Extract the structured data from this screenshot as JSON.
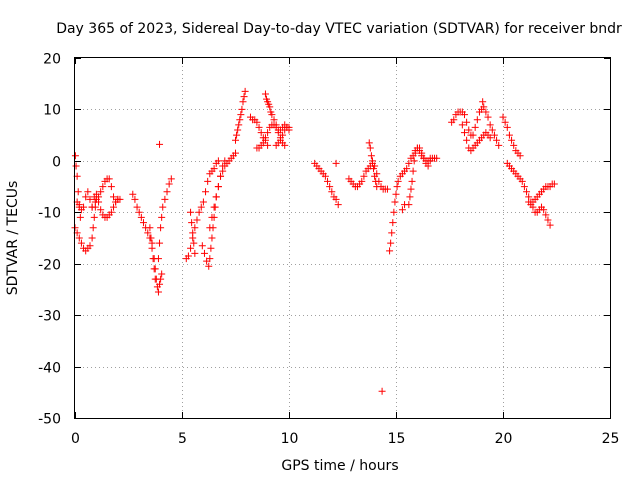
{
  "chart_data": {
    "type": "scatter",
    "title": "Day 365 of 2023, Sidereal Day-to-day VTEC variation (SDTVAR) for receiver bndr",
    "xlabel": "GPS time / hours",
    "ylabel": "SDTVAR / TECUs",
    "xlim": [
      0,
      25
    ],
    "ylim": [
      -50,
      20
    ],
    "xticks": [
      "0",
      "5",
      "10",
      "15",
      "20",
      "25"
    ],
    "yticks": [
      "20",
      "10",
      "0",
      "-10",
      "-20",
      "-30",
      "-40",
      "-50"
    ],
    "grid": true,
    "marker": "plus",
    "color": "#ff0000",
    "segments": [
      [
        [
          0.0,
          -13
        ],
        [
          0.1,
          -14
        ],
        [
          0.2,
          -15
        ],
        [
          0.3,
          -16
        ],
        [
          0.4,
          -17
        ],
        [
          0.5,
          -17.5
        ],
        [
          0.6,
          -17
        ],
        [
          0.7,
          -16.5
        ],
        [
          0.8,
          -15
        ],
        [
          0.85,
          -13
        ],
        [
          0.9,
          -11
        ],
        [
          0.95,
          -9
        ],
        [
          1.0,
          -7.5
        ]
      ],
      [
        [
          0.02,
          1
        ],
        [
          0.05,
          -1
        ],
        [
          0.1,
          -3
        ],
        [
          0.15,
          -6
        ],
        [
          0.2,
          -9
        ],
        [
          0.25,
          -11
        ]
      ],
      [
        [
          0.1,
          -8
        ],
        [
          0.2,
          -8.5
        ],
        [
          0.3,
          -9.5
        ],
        [
          0.4,
          -9
        ],
        [
          0.5,
          -7
        ],
        [
          0.6,
          -6
        ],
        [
          0.7,
          -7.5
        ],
        [
          0.8,
          -9
        ],
        [
          0.9,
          -7
        ],
        [
          1.0,
          -6.5
        ],
        [
          1.1,
          -8
        ],
        [
          1.2,
          -9.5
        ],
        [
          1.3,
          -10.5
        ],
        [
          1.4,
          -11
        ],
        [
          1.5,
          -11
        ],
        [
          1.6,
          -10.5
        ],
        [
          1.7,
          -10
        ],
        [
          1.8,
          -9
        ],
        [
          1.9,
          -8
        ],
        [
          2.0,
          -7.5
        ],
        [
          2.1,
          -7.5
        ]
      ],
      [
        [
          0.8,
          -9
        ],
        [
          0.95,
          -8
        ],
        [
          1.1,
          -7
        ],
        [
          1.2,
          -6
        ],
        [
          1.3,
          -5
        ],
        [
          1.4,
          -4
        ],
        [
          1.5,
          -3.5
        ],
        [
          1.6,
          -3.5
        ],
        [
          1.7,
          -5
        ],
        [
          1.8,
          -7
        ],
        [
          1.9,
          -8
        ],
        [
          2.0,
          -7.5
        ]
      ],
      [
        [
          2.7,
          -6.5
        ],
        [
          2.8,
          -7.5
        ],
        [
          2.9,
          -9
        ],
        [
          3.0,
          -10
        ],
        [
          3.1,
          -11
        ],
        [
          3.2,
          -12
        ],
        [
          3.3,
          -13
        ],
        [
          3.4,
          -14
        ],
        [
          3.5,
          -15
        ],
        [
          3.6,
          -16
        ],
        [
          3.7,
          -19
        ],
        [
          3.75,
          -21
        ],
        [
          3.8,
          -23
        ],
        [
          3.85,
          -24.5
        ],
        [
          3.9,
          -25.5
        ],
        [
          3.95,
          -24
        ],
        [
          4.0,
          -23
        ],
        [
          4.05,
          -22
        ]
      ],
      [
        [
          3.5,
          -13
        ],
        [
          3.55,
          -15
        ],
        [
          3.6,
          -17
        ],
        [
          3.65,
          -19
        ],
        [
          3.7,
          -21
        ],
        [
          3.75,
          -23
        ]
      ],
      [
        [
          3.9,
          -19
        ],
        [
          3.95,
          -16
        ],
        [
          4.0,
          -13
        ],
        [
          4.05,
          -11
        ],
        [
          4.1,
          -9
        ],
        [
          4.2,
          -7.5
        ],
        [
          4.3,
          -6
        ],
        [
          4.4,
          -4.5
        ],
        [
          4.5,
          -3.5
        ]
      ],
      [
        [
          3.95,
          3.2
        ]
      ],
      [
        [
          5.2,
          -19
        ],
        [
          5.3,
          -18.5
        ],
        [
          5.4,
          -17
        ],
        [
          5.5,
          -15
        ],
        [
          5.6,
          -13
        ],
        [
          5.7,
          -11.5
        ],
        [
          5.8,
          -10
        ],
        [
          5.9,
          -9
        ],
        [
          6.0,
          -8
        ],
        [
          6.1,
          -6
        ],
        [
          6.2,
          -4
        ],
        [
          6.3,
          -2.5
        ],
        [
          6.4,
          -2
        ],
        [
          6.5,
          -1.5
        ],
        [
          6.6,
          -0.5
        ],
        [
          6.7,
          0
        ]
      ],
      [
        [
          5.4,
          -10
        ],
        [
          5.45,
          -12
        ],
        [
          5.5,
          -14
        ],
        [
          5.55,
          -16
        ],
        [
          5.6,
          -18
        ]
      ],
      [
        [
          5.95,
          -16.5
        ],
        [
          6.05,
          -18
        ],
        [
          6.15,
          -19.5
        ],
        [
          6.25,
          -20.5
        ],
        [
          6.3,
          -19
        ],
        [
          6.35,
          -17
        ],
        [
          6.4,
          -15
        ],
        [
          6.45,
          -13
        ],
        [
          6.5,
          -11
        ],
        [
          6.55,
          -9
        ],
        [
          6.6,
          -7
        ],
        [
          6.7,
          -5
        ],
        [
          6.8,
          -3
        ],
        [
          6.9,
          -2
        ],
        [
          7.0,
          -1
        ],
        [
          7.1,
          -0.5
        ],
        [
          7.2,
          0
        ],
        [
          7.3,
          0.5
        ],
        [
          7.4,
          1
        ],
        [
          7.5,
          1.5
        ]
      ],
      [
        [
          6.3,
          -13
        ],
        [
          6.4,
          -11
        ],
        [
          6.5,
          -9
        ],
        [
          6.6,
          -7
        ],
        [
          6.7,
          -5
        ],
        [
          6.8,
          -3
        ],
        [
          6.9,
          -1
        ],
        [
          7.0,
          0
        ]
      ],
      [
        [
          7.5,
          4
        ],
        [
          7.55,
          5
        ],
        [
          7.6,
          6
        ],
        [
          7.65,
          7
        ],
        [
          7.7,
          8
        ],
        [
          7.75,
          9
        ],
        [
          7.8,
          10
        ],
        [
          7.85,
          11.5
        ],
        [
          7.9,
          12.5
        ],
        [
          7.95,
          13.5
        ]
      ],
      [
        [
          8.5,
          2.5
        ],
        [
          8.6,
          2.5
        ],
        [
          8.7,
          3
        ],
        [
          8.8,
          3.5
        ],
        [
          8.9,
          4.5
        ],
        [
          9.0,
          5.5
        ],
        [
          9.1,
          6.5
        ],
        [
          9.2,
          7
        ],
        [
          9.3,
          7
        ],
        [
          9.4,
          6.5
        ],
        [
          9.5,
          6
        ],
        [
          9.6,
          6
        ],
        [
          9.7,
          6.5
        ],
        [
          9.8,
          7
        ],
        [
          9.9,
          6.5
        ],
        [
          10.0,
          6
        ]
      ],
      [
        [
          8.2,
          8.5
        ],
        [
          8.3,
          8
        ],
        [
          8.4,
          8
        ],
        [
          8.5,
          7.5
        ],
        [
          8.6,
          6.5
        ],
        [
          8.7,
          5.5
        ],
        [
          8.8,
          4.5
        ],
        [
          8.9,
          4
        ],
        [
          9.0,
          3
        ]
      ],
      [
        [
          8.9,
          13
        ],
        [
          8.95,
          12
        ],
        [
          9.0,
          11.5
        ],
        [
          9.05,
          11
        ],
        [
          9.1,
          10.5
        ],
        [
          9.15,
          9.5
        ],
        [
          9.2,
          9
        ],
        [
          9.3,
          8
        ],
        [
          9.4,
          7
        ],
        [
          9.5,
          5.5
        ],
        [
          9.6,
          4.5
        ],
        [
          9.7,
          3.5
        ],
        [
          9.8,
          3
        ]
      ],
      [
        [
          9.4,
          3
        ],
        [
          9.5,
          3.5
        ],
        [
          9.6,
          4
        ],
        [
          9.7,
          5
        ],
        [
          9.8,
          6
        ],
        [
          9.9,
          6.5
        ],
        [
          10.0,
          6.5
        ]
      ],
      [
        [
          11.2,
          -0.5
        ],
        [
          11.3,
          -1
        ],
        [
          11.4,
          -1.5
        ],
        [
          11.5,
          -2
        ],
        [
          11.6,
          -2.5
        ],
        [
          11.7,
          -3
        ],
        [
          11.8,
          -4
        ],
        [
          11.9,
          -5
        ],
        [
          12.0,
          -6
        ],
        [
          12.1,
          -7
        ],
        [
          12.2,
          -7.5
        ],
        [
          12.3,
          -8.5
        ]
      ],
      [
        [
          12.2,
          -0.5
        ]
      ],
      [
        [
          12.8,
          -3.5
        ],
        [
          12.9,
          -4
        ],
        [
          13.0,
          -4.5
        ],
        [
          13.1,
          -5
        ],
        [
          13.2,
          -5
        ],
        [
          13.3,
          -4.5
        ],
        [
          13.4,
          -4
        ],
        [
          13.5,
          -3
        ],
        [
          13.6,
          -2
        ],
        [
          13.7,
          -1.5
        ],
        [
          13.8,
          -1
        ],
        [
          13.9,
          -0.5
        ],
        [
          14.0,
          -1
        ],
        [
          14.1,
          -2.5
        ],
        [
          14.2,
          -4
        ],
        [
          14.3,
          -5
        ],
        [
          14.4,
          -5.5
        ],
        [
          14.5,
          -5.5
        ],
        [
          14.6,
          -5.5
        ]
      ],
      [
        [
          13.75,
          3.5
        ],
        [
          13.8,
          2.5
        ],
        [
          13.85,
          1
        ],
        [
          13.9,
          0
        ],
        [
          13.95,
          -1.5
        ],
        [
          14.0,
          -3
        ],
        [
          14.05,
          -4
        ],
        [
          14.1,
          -5
        ]
      ],
      [
        [
          14.35,
          -44.8
        ]
      ],
      [
        [
          14.7,
          -17.5
        ],
        [
          14.75,
          -16
        ],
        [
          14.8,
          -14
        ],
        [
          14.85,
          -12
        ],
        [
          14.9,
          -10
        ],
        [
          14.95,
          -8
        ],
        [
          15.0,
          -6.5
        ],
        [
          15.05,
          -5
        ],
        [
          15.1,
          -4
        ],
        [
          15.2,
          -3
        ],
        [
          15.3,
          -2.5
        ],
        [
          15.4,
          -2
        ],
        [
          15.5,
          -1.5
        ],
        [
          15.6,
          -0.5
        ],
        [
          15.7,
          0.5
        ],
        [
          15.8,
          1
        ],
        [
          15.9,
          2
        ],
        [
          16.0,
          2.5
        ],
        [
          16.1,
          2
        ],
        [
          16.2,
          1
        ],
        [
          16.3,
          0.5
        ],
        [
          16.4,
          0
        ],
        [
          16.5,
          0
        ],
        [
          16.6,
          0.5
        ],
        [
          16.7,
          0.5
        ],
        [
          16.8,
          0.5
        ],
        [
          16.9,
          0.5
        ]
      ],
      [
        [
          15.3,
          -9.5
        ],
        [
          15.4,
          -8.5
        ]
      ],
      [
        [
          15.6,
          -8.5
        ],
        [
          15.65,
          -7
        ],
        [
          15.7,
          -5.5
        ],
        [
          15.75,
          -4
        ],
        [
          15.8,
          -2
        ],
        [
          15.85,
          0
        ],
        [
          15.9,
          1.5
        ],
        [
          16.0,
          2.5
        ],
        [
          16.1,
          2.5
        ],
        [
          16.2,
          1.5
        ],
        [
          16.3,
          0.5
        ],
        [
          16.4,
          -0.5
        ],
        [
          16.5,
          -1
        ],
        [
          16.6,
          0
        ]
      ],
      [
        [
          17.6,
          7.5
        ],
        [
          17.7,
          8
        ],
        [
          17.8,
          9
        ],
        [
          17.9,
          9.5
        ],
        [
          18.0,
          9.5
        ],
        [
          18.1,
          9.5
        ],
        [
          18.2,
          9
        ],
        [
          18.3,
          7.5
        ],
        [
          18.4,
          6
        ],
        [
          18.5,
          5
        ],
        [
          18.6,
          5
        ],
        [
          18.7,
          6.5
        ],
        [
          18.8,
          8
        ],
        [
          18.9,
          9.5
        ],
        [
          19.0,
          10
        ],
        [
          19.1,
          10.5
        ],
        [
          19.2,
          9.5
        ],
        [
          19.3,
          8.5
        ],
        [
          19.4,
          7
        ],
        [
          19.5,
          6
        ],
        [
          19.6,
          5
        ],
        [
          19.7,
          4
        ],
        [
          19.8,
          3
        ]
      ],
      [
        [
          18.1,
          7
        ],
        [
          18.2,
          5.5
        ],
        [
          18.3,
          4
        ],
        [
          18.4,
          2.5
        ],
        [
          18.5,
          2
        ],
        [
          18.6,
          2.5
        ],
        [
          18.7,
          3
        ],
        [
          18.8,
          3.5
        ],
        [
          18.9,
          4
        ],
        [
          19.0,
          4.5
        ],
        [
          19.1,
          5
        ],
        [
          19.2,
          5.5
        ],
        [
          19.3,
          5
        ],
        [
          19.4,
          4.5
        ]
      ],
      [
        [
          19.05,
          11.5
        ]
      ],
      [
        [
          20.0,
          8.5
        ],
        [
          20.1,
          7.5
        ],
        [
          20.2,
          6.5
        ],
        [
          20.3,
          5
        ],
        [
          20.4,
          4
        ],
        [
          20.5,
          3
        ],
        [
          20.6,
          2
        ],
        [
          20.7,
          1.5
        ],
        [
          20.8,
          1
        ]
      ],
      [
        [
          20.2,
          -0.5
        ],
        [
          20.3,
          -1
        ],
        [
          20.4,
          -1.5
        ],
        [
          20.5,
          -2
        ],
        [
          20.6,
          -2.5
        ],
        [
          20.7,
          -3
        ],
        [
          20.8,
          -3.5
        ],
        [
          20.9,
          -4
        ],
        [
          21.0,
          -5
        ],
        [
          21.1,
          -6
        ],
        [
          21.2,
          -7
        ],
        [
          21.3,
          -8
        ],
        [
          21.4,
          -9
        ],
        [
          21.5,
          -10
        ],
        [
          21.6,
          -10
        ],
        [
          21.7,
          -9.5
        ],
        [
          21.8,
          -9
        ],
        [
          21.9,
          -9.5
        ],
        [
          22.0,
          -10.5
        ],
        [
          22.1,
          -11.5
        ],
        [
          22.2,
          -12.5
        ]
      ],
      [
        [
          21.2,
          -8
        ],
        [
          21.3,
          -8.5
        ],
        [
          21.4,
          -8
        ],
        [
          21.5,
          -7.5
        ],
        [
          21.6,
          -7
        ],
        [
          21.7,
          -6.5
        ],
        [
          21.8,
          -6
        ],
        [
          21.9,
          -5.5
        ],
        [
          22.0,
          -5
        ],
        [
          22.1,
          -5
        ],
        [
          22.2,
          -5
        ],
        [
          22.3,
          -4.5
        ],
        [
          22.4,
          -4.5
        ]
      ]
    ]
  }
}
